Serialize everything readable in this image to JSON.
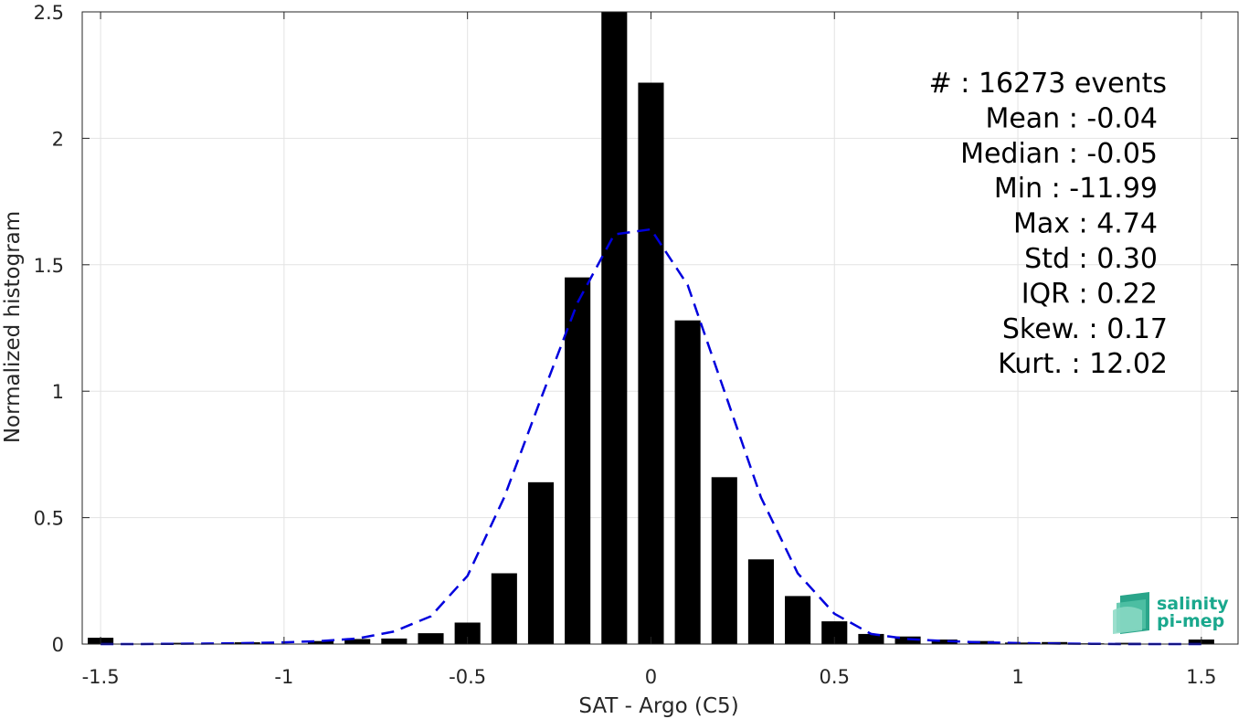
{
  "chart_data": {
    "type": "bar",
    "xlabel": "SAT - Argo (C5)",
    "ylabel": "Normalized histogram",
    "xlim": [
      -1.55,
      1.6
    ],
    "ylim": [
      0,
      2.5
    ],
    "grid": true,
    "x_ticks": [
      -1.5,
      -1,
      -0.5,
      0,
      0.5,
      1,
      1.5
    ],
    "x_tick_labels": [
      "-1.5",
      "-1",
      "-0.5",
      "0",
      "0.5",
      "1",
      "1.5"
    ],
    "y_ticks": [
      0,
      0.5,
      1,
      1.5,
      2,
      2.5
    ],
    "y_tick_labels": [
      "0",
      "0.5",
      "1",
      "1.5",
      "2",
      "2.5"
    ],
    "bar_width": 0.07,
    "bars": {
      "x": [
        -1.5,
        -1.3,
        -1.1,
        -0.9,
        -0.8,
        -0.7,
        -0.6,
        -0.5,
        -0.4,
        -0.3,
        -0.2,
        -0.1,
        0.0,
        0.1,
        0.2,
        0.3,
        0.4,
        0.5,
        0.6,
        0.7,
        0.8,
        0.9,
        1.0,
        1.1,
        1.2,
        1.3,
        1.5
      ],
      "values": [
        0.025,
        0.005,
        0.007,
        0.012,
        0.02,
        0.022,
        0.043,
        0.085,
        0.28,
        0.64,
        1.45,
        2.5,
        2.22,
        1.28,
        0.66,
        0.335,
        0.19,
        0.09,
        0.04,
        0.03,
        0.018,
        0.012,
        0.006,
        0.008,
        0.003,
        0.005,
        0.018
      ],
      "color": "#000000"
    },
    "fit_curve": {
      "x": [
        -1.5,
        -1.4,
        -1.3,
        -1.2,
        -1.1,
        -1.0,
        -0.9,
        -0.8,
        -0.7,
        -0.6,
        -0.5,
        -0.4,
        -0.3,
        -0.2,
        -0.1,
        0.0,
        0.1,
        0.2,
        0.3,
        0.4,
        0.5,
        0.6,
        0.7,
        0.8,
        0.9,
        1.0,
        1.1,
        1.2,
        1.3,
        1.4,
        1.5
      ],
      "values": [
        0.0,
        0.0,
        0.001,
        0.002,
        0.004,
        0.007,
        0.012,
        0.022,
        0.05,
        0.11,
        0.27,
        0.58,
        0.97,
        1.35,
        1.62,
        1.64,
        1.42,
        1.0,
        0.58,
        0.28,
        0.12,
        0.04,
        0.02,
        0.012,
        0.007,
        0.004,
        0.002,
        0.001,
        0.0,
        0.0,
        0.0
      ],
      "color": "#0000dd",
      "style": "dashed"
    },
    "annotations": [
      "#  : 16273 events",
      "Mean : -0.04",
      "Median : -0.05",
      "Min : -11.99",
      "Max : 4.74",
      "Std : 0.30",
      "IQR : 0.22",
      "Skew. : 0.17",
      "Kurt. : 12.02"
    ]
  },
  "logo": {
    "line1": "salinity",
    "line2": "pi-mep",
    "color": "#1aa88d"
  }
}
